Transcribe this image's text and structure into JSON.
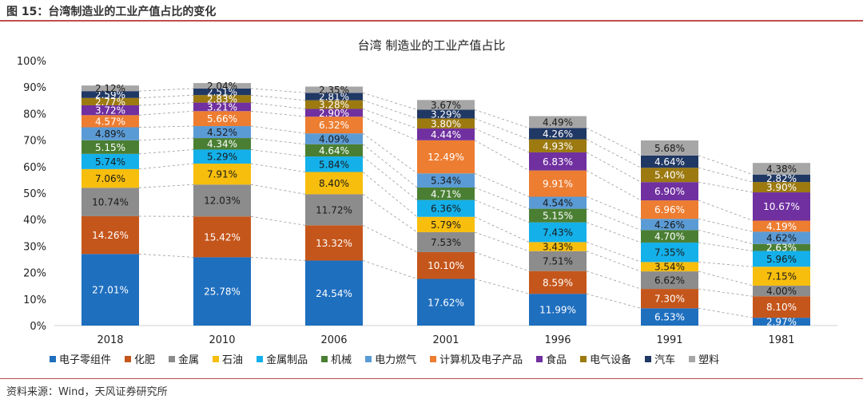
{
  "figure_header": "图 15：台湾制造业的工业产值占比的变化",
  "source_note": "资料来源：Wind，天风证券研究所",
  "chart_data": {
    "type": "bar",
    "stacked": true,
    "title": "台湾 制造业的工业产值占比",
    "categories": [
      "2018",
      "2010",
      "2006",
      "2001",
      "1996",
      "1991",
      "1981"
    ],
    "y_ticks": [
      "0%",
      "10%",
      "20%",
      "30%",
      "40%",
      "50%",
      "60%",
      "70%",
      "80%",
      "90%",
      "100%"
    ],
    "ylim": [
      0,
      100
    ],
    "grid": false,
    "legend_position": "bottom",
    "series": [
      {
        "name": "电子零组件",
        "color": "#1f6fbf",
        "values": [
          27.01,
          25.78,
          24.54,
          17.62,
          11.99,
          6.53,
          2.97
        ],
        "labels": [
          "27.01%",
          "25.78%",
          "24.54%",
          "17.62%",
          "11.99%",
          "6.53%",
          "2.97%"
        ]
      },
      {
        "name": "化肥",
        "color": "#c5561b",
        "values": [
          14.26,
          15.42,
          13.32,
          10.1,
          8.59,
          7.3,
          8.1
        ],
        "labels": [
          "14.26%",
          "15.42%",
          "13.32%",
          "10.10%",
          "8.59%",
          "7.30%",
          "8.10%"
        ]
      },
      {
        "name": "金属",
        "color": "#8c8c8c",
        "values": [
          10.74,
          12.03,
          11.72,
          7.53,
          7.51,
          6.62,
          4.0
        ],
        "labels": [
          "10.74%",
          "12.03%",
          "11.72%",
          "7.53%",
          "7.51%",
          "6.62%",
          "4.00%"
        ]
      },
      {
        "name": "石油",
        "color": "#f7be0d",
        "values": [
          7.06,
          7.91,
          8.4,
          5.79,
          3.43,
          3.54,
          7.15
        ],
        "labels": [
          "7.06%",
          "7.91%",
          "8.40%",
          "5.79%",
          "3.43%",
          "3.54%",
          "7.15%"
        ]
      },
      {
        "name": "金属制品",
        "color": "#14b0ea",
        "values": [
          5.74,
          5.29,
          5.84,
          6.36,
          7.43,
          7.35,
          5.96
        ],
        "labels": [
          "5.74%",
          "5.29%",
          "5.84%",
          "6.36%",
          "7.43%",
          "7.35%",
          "5.96%"
        ]
      },
      {
        "name": "机械",
        "color": "#4a7f33",
        "values": [
          5.15,
          4.34,
          4.64,
          4.71,
          5.15,
          4.7,
          2.63
        ],
        "labels": [
          "5.15%",
          "4.34%",
          "4.64%",
          "4.71%",
          "5.15%",
          "4.70%",
          "2.63%"
        ]
      },
      {
        "name": "电力燃气",
        "color": "#5b9bd5",
        "values": [
          4.89,
          4.52,
          4.09,
          5.34,
          4.54,
          4.26,
          4.62
        ],
        "labels": [
          "4.89%",
          "4.52%",
          "4.09%",
          "5.34%",
          "4.54%",
          "4.26%",
          "4.62%"
        ]
      },
      {
        "name": "计算机及电子产品",
        "color": "#ed7d31",
        "values": [
          4.57,
          5.66,
          6.32,
          12.49,
          9.91,
          6.96,
          4.19
        ],
        "labels": [
          "4.57%",
          "5.66%",
          "6.32%",
          "12.49%",
          "9.91%",
          "6.96%",
          "4.19%"
        ]
      },
      {
        "name": "食品",
        "color": "#7030a0",
        "values": [
          3.72,
          3.21,
          2.9,
          4.44,
          6.83,
          6.9,
          10.67
        ],
        "labels": [
          "3.72%",
          "3.21%",
          "2.90%",
          "4.44%",
          "6.83%",
          "6.90%",
          "10.67%"
        ]
      },
      {
        "name": "电气设备",
        "color": "#9c7a10",
        "values": [
          2.77,
          2.83,
          3.28,
          3.8,
          4.93,
          5.4,
          3.9
        ],
        "labels": [
          "2.77%",
          "2.83%",
          "3.28%",
          "3.80%",
          "4.93%",
          "5.40%",
          "3.90%"
        ]
      },
      {
        "name": "汽车",
        "color": "#203864",
        "values": [
          2.59,
          2.51,
          2.81,
          3.29,
          4.26,
          4.64,
          2.82
        ],
        "labels": [
          "2.59%",
          "2.51%",
          "2.81%",
          "3.29%",
          "4.26%",
          "4.64%",
          "2.82%"
        ]
      },
      {
        "name": "塑料",
        "color": "#a6a6a6",
        "values": [
          2.12,
          2.04,
          2.35,
          3.67,
          4.49,
          5.68,
          4.38
        ],
        "labels": [
          "2.12%",
          "2.04%",
          "2.35%",
          "3.67%",
          "4.49%",
          "5.68%",
          "4.38%"
        ]
      }
    ]
  }
}
